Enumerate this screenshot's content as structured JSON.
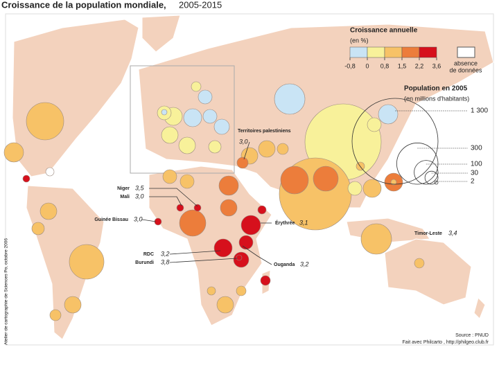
{
  "header": {
    "title": "Croissance de la population mondiale,",
    "period": "2005-2015"
  },
  "growth_legend": {
    "title": "Croissance annuelle",
    "unit": "(en %)",
    "breaks": [
      {
        "value": -0.8,
        "label": "-0,8"
      },
      0,
      {
        "value": 0.8,
        "label": "0,8"
      },
      {
        "value": 1.5,
        "label": "1,5"
      },
      {
        "value": 2.2,
        "label": "2,2"
      },
      {
        "value": 3.6,
        "label": "3,6"
      }
    ],
    "colors": [
      "#c9e4f5",
      "#f8f19a",
      "#f7c267",
      "#ec7d3b",
      "#d6101c"
    ],
    "no_data": [
      "absence",
      "de données"
    ]
  },
  "population_legend": {
    "title": "Population en 2005",
    "unit": "(en millions d'habitants)",
    "sizes": [
      {
        "value": 1300,
        "label": "1 300"
      },
      300,
      100,
      30,
      2
    ]
  },
  "annotations": [
    {
      "label": "Territoires palestiniens",
      "value": {
        "value": 3.0,
        "label": "3,0"
      }
    },
    {
      "label": "Niger",
      "value": {
        "value": 3.5,
        "label": "3,5"
      }
    },
    {
      "label": "Mali",
      "value": {
        "value": 3.0,
        "label": "3,0"
      }
    },
    {
      "label": "Guinée Bissau",
      "value": {
        "value": 3.0,
        "label": "3,0"
      }
    },
    {
      "label": "Érythrée",
      "value": {
        "value": 3.1,
        "label": "3,1"
      }
    },
    {
      "label": "Timor-Leste",
      "value": {
        "value": 3.4,
        "label": "3,4"
      }
    },
    {
      "label": "RDC",
      "value": {
        "value": 3.2,
        "label": "3,2"
      }
    },
    {
      "label": "Burundi",
      "value": {
        "value": 3.8,
        "label": "3,8"
      }
    },
    {
      "label": "Ouganda",
      "value": {
        "value": 3.2,
        "label": "3,2"
      }
    }
  ],
  "footer": {
    "source": "Source : PNUD",
    "credit": "Fait avec Philcarto , http://philgeo.club.fr",
    "side": "Atelier de cartographie de Sciences Po, octobre 2006"
  }
}
